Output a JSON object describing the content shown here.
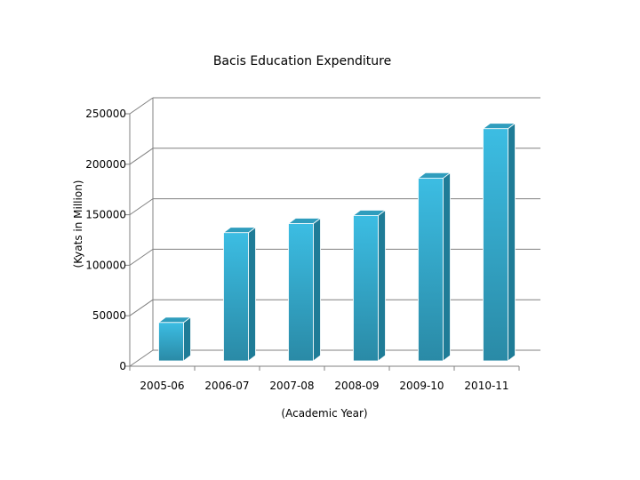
{
  "chart_data": {
    "type": "bar",
    "title": "Bacis Education Expenditure",
    "xlabel": "(Academic Year)",
    "ylabel": "(Kyats in Million)",
    "categories": [
      "2005-06",
      "2006-07",
      "2007-08",
      "2008-09",
      "2009-10",
      "2010-11"
    ],
    "values": [
      38000,
      127000,
      136000,
      144000,
      181000,
      230000
    ],
    "ylim": [
      0,
      250000
    ],
    "yticks": [
      "0",
      "50000",
      "100000",
      "150000",
      "200000",
      "250000"
    ],
    "ytick_values": [
      0,
      50000,
      100000,
      150000,
      200000,
      250000
    ],
    "grid": true,
    "bar_style": "3d",
    "colors": {
      "bar_front_top": "#3cbde3",
      "bar_front_bottom": "#2a8aa6",
      "bar_side": "#1f7c97",
      "bar_top": "#2f9dbd",
      "grid": "#808080"
    }
  }
}
